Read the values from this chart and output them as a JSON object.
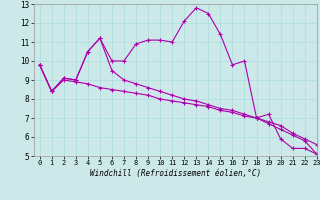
{
  "xlabel": "Windchill (Refroidissement éolien,°C)",
  "xlim": [
    -0.5,
    23
  ],
  "ylim": [
    5,
    13
  ],
  "xticks": [
    0,
    1,
    2,
    3,
    4,
    5,
    6,
    7,
    8,
    9,
    10,
    11,
    12,
    13,
    14,
    15,
    16,
    17,
    18,
    19,
    20,
    21,
    22,
    23
  ],
  "yticks": [
    5,
    6,
    7,
    8,
    9,
    10,
    11,
    12,
    13
  ],
  "bg_color": "#cce8e8",
  "line_color": "#aa00aa",
  "line1_y": [
    9.8,
    8.4,
    9.1,
    9.0,
    10.5,
    11.2,
    10.0,
    10.0,
    10.9,
    11.1,
    11.1,
    11.0,
    12.1,
    12.8,
    12.5,
    11.4,
    9.8,
    10.0,
    7.0,
    7.2,
    5.9,
    5.4,
    5.4,
    5.1
  ],
  "line2_y": [
    9.8,
    8.4,
    9.1,
    9.0,
    10.5,
    11.2,
    9.5,
    9.0,
    8.8,
    8.6,
    8.4,
    8.2,
    8.0,
    7.9,
    7.7,
    7.5,
    7.4,
    7.2,
    7.0,
    6.8,
    6.6,
    6.2,
    5.9,
    5.6
  ],
  "line3_y": [
    9.8,
    8.4,
    9.0,
    8.9,
    8.8,
    8.6,
    8.5,
    8.4,
    8.3,
    8.2,
    8.0,
    7.9,
    7.8,
    7.7,
    7.6,
    7.4,
    7.3,
    7.1,
    7.0,
    6.7,
    6.4,
    6.1,
    5.8,
    5.1
  ]
}
